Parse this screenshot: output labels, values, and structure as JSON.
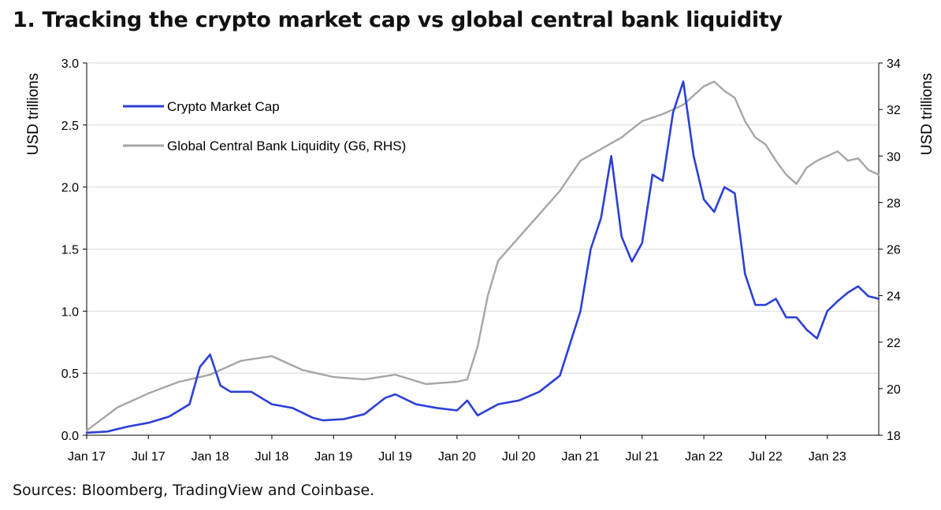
{
  "header": {
    "title": "1. Tracking the crypto market cap vs global central bank liquidity"
  },
  "footer": {
    "source": "Sources: Bloomberg, TradingView and Coinbase."
  },
  "colors": {
    "crypto": "#2b3fd8",
    "liquidity": "#a6a6a6",
    "grid": "#d9d9d9",
    "axis": "#000000"
  },
  "chart_data": {
    "type": "line",
    "title": "1. Tracking the crypto market cap vs global central bank liquidity",
    "ylabel": "USD trillions",
    "y2label": "USD trillions",
    "ylim": [
      0,
      3.0
    ],
    "y2lim": [
      18,
      34
    ],
    "yticks": [
      "0.0",
      "0.5",
      "1.0",
      "1.5",
      "2.0",
      "2.5",
      "3.0"
    ],
    "y2ticks": [
      "18",
      "20",
      "22",
      "24",
      "26",
      "28",
      "30",
      "32",
      "34"
    ],
    "xticks": [
      "Jan 17",
      "Jul 17",
      "Jan 18",
      "Jul 18",
      "Jan 19",
      "Jul 19",
      "Jan 20",
      "Jul 20",
      "Jan 21",
      "Jul 21",
      "Jan 22",
      "Jul 22",
      "Jan 23"
    ],
    "xlim": [
      "2017-01",
      "2023-06"
    ],
    "grid": true,
    "legend_position": "top-left",
    "series": [
      {
        "name": "Crypto Market Cap",
        "axis": "left",
        "color": "#2b3fd8",
        "x": [
          "2017-01",
          "2017-03",
          "2017-05",
          "2017-07",
          "2017-09",
          "2017-11",
          "2017-12",
          "2018-01",
          "2018-02",
          "2018-03",
          "2018-05",
          "2018-07",
          "2018-09",
          "2018-11",
          "2018-12",
          "2019-02",
          "2019-04",
          "2019-06",
          "2019-07",
          "2019-09",
          "2019-11",
          "2020-01",
          "2020-02",
          "2020-03",
          "2020-05",
          "2020-07",
          "2020-09",
          "2020-11",
          "2021-01",
          "2021-02",
          "2021-03",
          "2021-04",
          "2021-05",
          "2021-06",
          "2021-07",
          "2021-08",
          "2021-09",
          "2021-10",
          "2021-11",
          "2021-12",
          "2022-01",
          "2022-02",
          "2022-03",
          "2022-04",
          "2022-05",
          "2022-06",
          "2022-07",
          "2022-08",
          "2022-09",
          "2022-10",
          "2022-11",
          "2022-12",
          "2023-01",
          "2023-02",
          "2023-03",
          "2023-04",
          "2023-05",
          "2023-06"
        ],
        "values": [
          0.02,
          0.03,
          0.07,
          0.1,
          0.15,
          0.25,
          0.55,
          0.65,
          0.4,
          0.35,
          0.35,
          0.25,
          0.22,
          0.14,
          0.12,
          0.13,
          0.17,
          0.3,
          0.33,
          0.25,
          0.22,
          0.2,
          0.28,
          0.16,
          0.25,
          0.28,
          0.35,
          0.48,
          1.0,
          1.5,
          1.75,
          2.25,
          1.6,
          1.4,
          1.55,
          2.1,
          2.05,
          2.6,
          2.85,
          2.25,
          1.9,
          1.8,
          2.0,
          1.95,
          1.3,
          1.05,
          1.05,
          1.1,
          0.95,
          0.95,
          0.85,
          0.78,
          1.0,
          1.08,
          1.15,
          1.2,
          1.12,
          1.1
        ]
      },
      {
        "name": "Global Central Bank Liquidity (G6, RHS)",
        "axis": "right",
        "color": "#a6a6a6",
        "x": [
          "2017-01",
          "2017-04",
          "2017-07",
          "2017-10",
          "2018-01",
          "2018-04",
          "2018-07",
          "2018-10",
          "2019-01",
          "2019-04",
          "2019-07",
          "2019-10",
          "2020-01",
          "2020-02",
          "2020-03",
          "2020-04",
          "2020-05",
          "2020-07",
          "2020-09",
          "2020-11",
          "2021-01",
          "2021-03",
          "2021-05",
          "2021-07",
          "2021-09",
          "2021-11",
          "2022-01",
          "2022-02",
          "2022-03",
          "2022-04",
          "2022-05",
          "2022-06",
          "2022-07",
          "2022-08",
          "2022-09",
          "2022-10",
          "2022-11",
          "2022-12",
          "2023-01",
          "2023-02",
          "2023-03",
          "2023-04",
          "2023-05",
          "2023-06"
        ],
        "values": [
          18.2,
          19.2,
          19.8,
          20.3,
          20.6,
          21.2,
          21.4,
          20.8,
          20.5,
          20.4,
          20.6,
          20.2,
          20.3,
          20.4,
          21.8,
          24.0,
          25.5,
          26.5,
          27.5,
          28.5,
          29.8,
          30.3,
          30.8,
          31.5,
          31.8,
          32.2,
          33.0,
          33.2,
          32.8,
          32.5,
          31.5,
          30.8,
          30.5,
          29.8,
          29.2,
          28.8,
          29.5,
          29.8,
          30.0,
          30.2,
          29.8,
          29.9,
          29.4,
          29.2
        ]
      }
    ]
  }
}
